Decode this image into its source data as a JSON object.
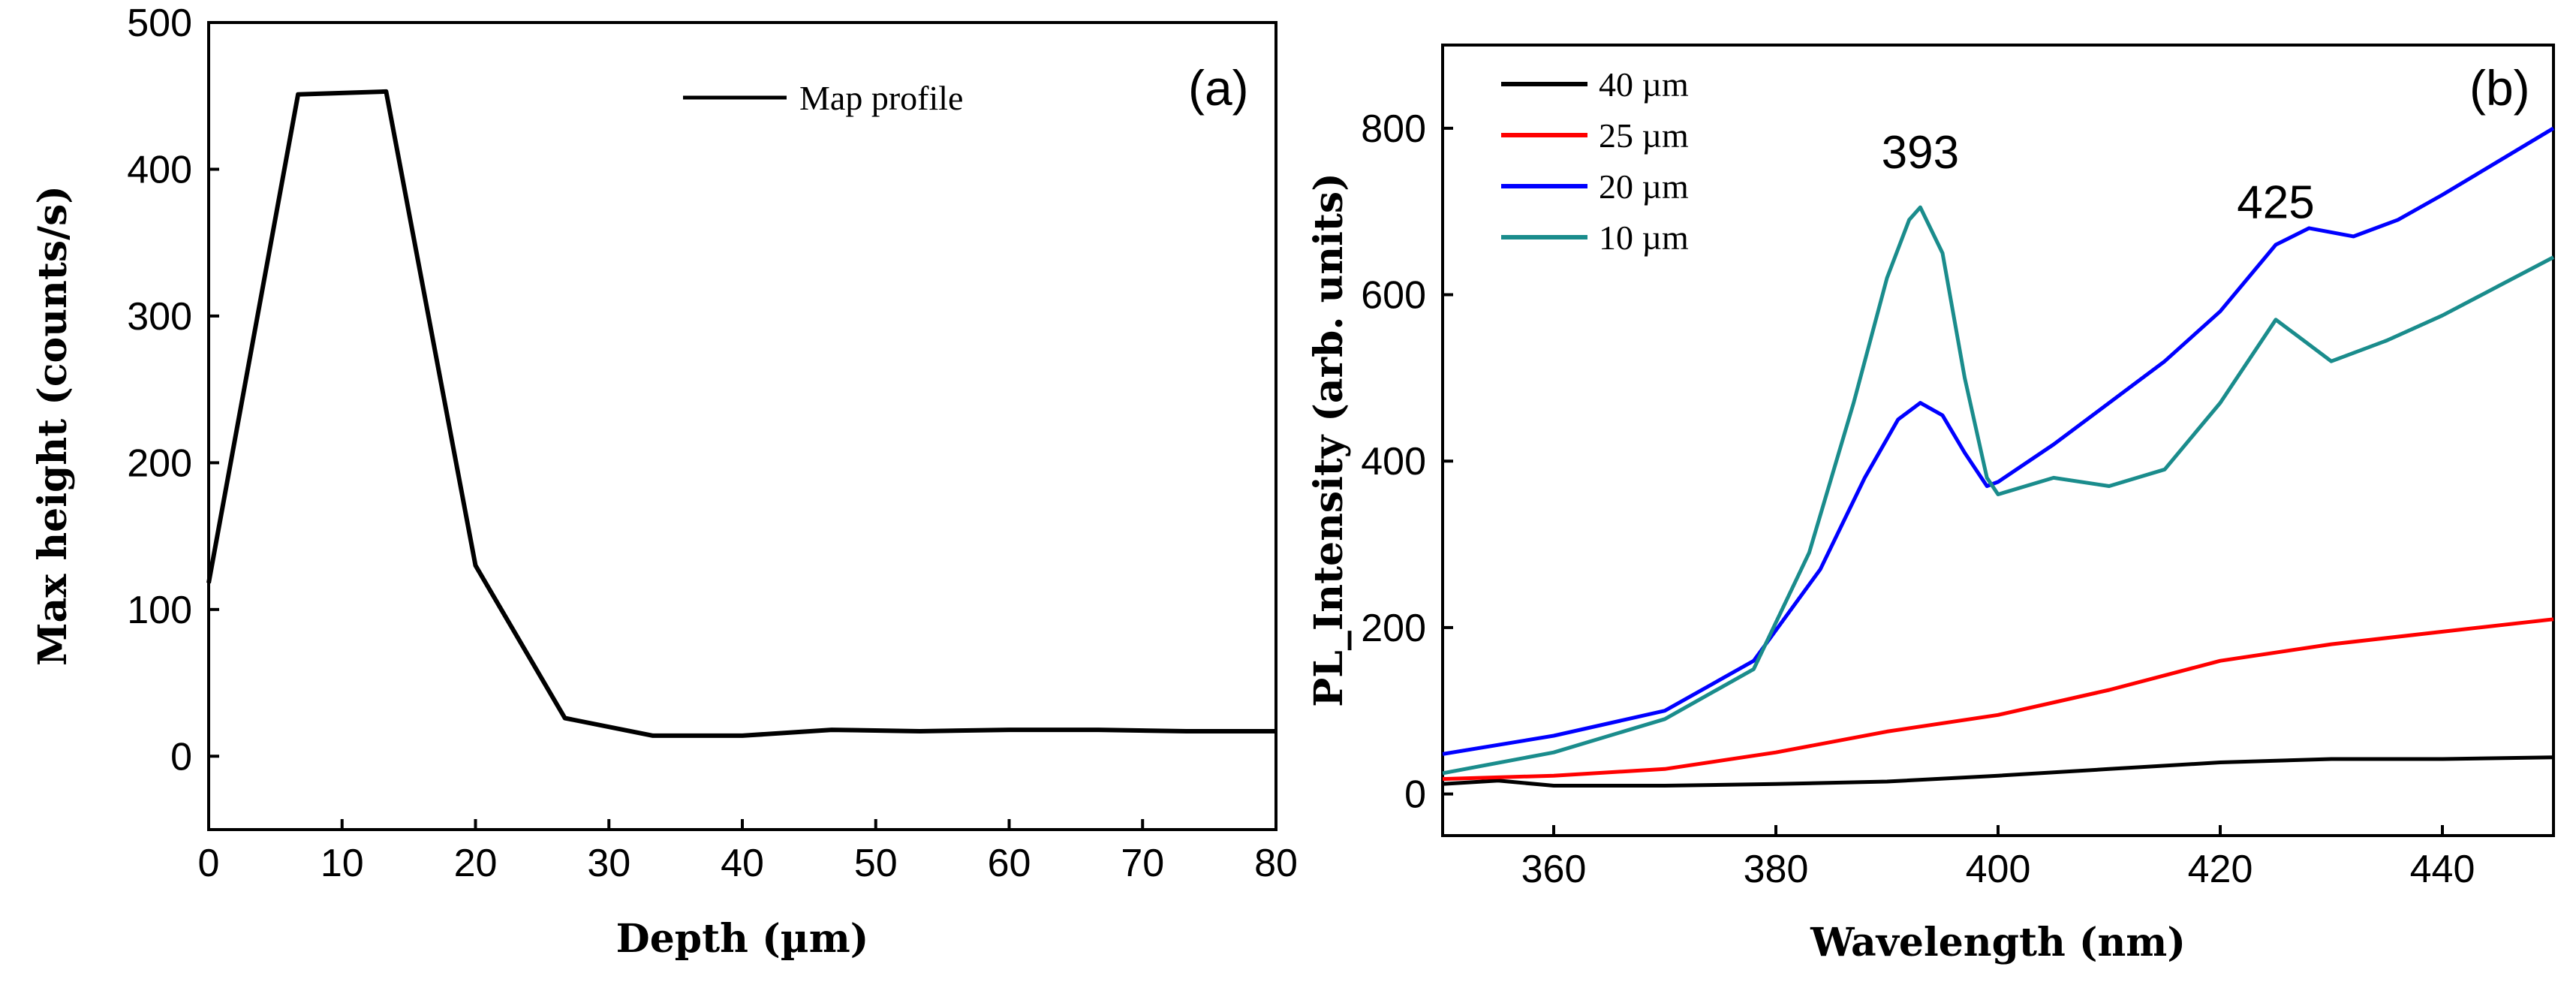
{
  "chart_data": [
    {
      "panel": "(a)",
      "type": "line",
      "xlabel": "Depth (µm)",
      "ylabel": "Max height (counts/s)",
      "xlim": [
        0,
        80
      ],
      "ylim": [
        -50,
        500
      ],
      "xticks": [
        0,
        10,
        20,
        30,
        40,
        50,
        60,
        70,
        80
      ],
      "yticks": [
        0,
        100,
        200,
        300,
        400,
        500
      ],
      "legend": [
        "Map profile"
      ],
      "series": [
        {
          "name": "Map profile",
          "color": "#000000",
          "x": [
            0,
            6.7,
            13.3,
            20,
            26.7,
            33.3,
            40,
            46.7,
            53.3,
            60,
            66.7,
            73.3,
            80
          ],
          "y": [
            118,
            451,
            453,
            130,
            26,
            14,
            14,
            18,
            17,
            18,
            18,
            17,
            17
          ]
        }
      ]
    },
    {
      "panel": "(b)",
      "type": "line",
      "xlabel": "Wavelength (nm)",
      "ylabel": "PL_Intensity (arb. units)",
      "xlim": [
        350,
        450
      ],
      "ylim": [
        -50,
        900
      ],
      "xticks": [
        360,
        380,
        400,
        420,
        440
      ],
      "yticks": [
        0,
        200,
        400,
        600,
        800
      ],
      "annotations": [
        {
          "text": "393",
          "x": 393,
          "y": 770
        },
        {
          "text": "425",
          "x": 425,
          "y": 710
        }
      ],
      "series": [
        {
          "name": "40 µm",
          "color": "#000000",
          "x": [
            350,
            355,
            360,
            370,
            380,
            390,
            400,
            410,
            420,
            430,
            440,
            450
          ],
          "y": [
            12,
            16,
            10,
            10,
            12,
            15,
            22,
            30,
            38,
            42,
            42,
            44
          ]
        },
        {
          "name": "25 µm",
          "color": "#ff0000",
          "x": [
            350,
            360,
            370,
            380,
            390,
            400,
            410,
            420,
            430,
            440,
            450
          ],
          "y": [
            18,
            22,
            30,
            50,
            75,
            95,
            125,
            160,
            180,
            195,
            210
          ]
        },
        {
          "name": "20 µm",
          "color": "#0000ff",
          "x": [
            350,
            360,
            370,
            378,
            384,
            388,
            391,
            393,
            395,
            397,
            399,
            400,
            405,
            410,
            415,
            420,
            425,
            428,
            432,
            436,
            440,
            445,
            450
          ],
          "y": [
            48,
            70,
            100,
            160,
            270,
            380,
            450,
            470,
            455,
            410,
            370,
            375,
            420,
            470,
            520,
            580,
            660,
            680,
            670,
            690,
            720,
            760,
            800
          ]
        },
        {
          "name": "10 µm",
          "color": "#1a8c8c",
          "x": [
            350,
            360,
            370,
            378,
            383,
            387,
            390,
            392,
            393,
            395,
            397,
            399,
            400,
            405,
            410,
            415,
            420,
            425,
            427,
            430,
            435,
            440,
            445,
            450
          ],
          "y": [
            25,
            50,
            90,
            150,
            290,
            470,
            620,
            690,
            705,
            650,
            500,
            380,
            360,
            380,
            370,
            390,
            470,
            570,
            550,
            520,
            545,
            575,
            610,
            645
          ]
        }
      ]
    }
  ]
}
